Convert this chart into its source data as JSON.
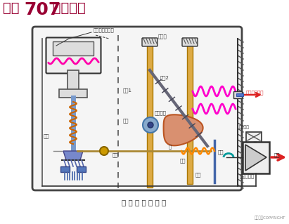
{
  "title_part1": "化工",
  "title_part2": "707",
  "title_part3": " 剪辑制作",
  "title_color": "#990033",
  "title_fontsize": 16,
  "subtitle": "气 动 阀 门 定 位 器",
  "subtitle_color": "#333333",
  "copyright": "东方仿真COPYRIGHT",
  "bg_color": "#ffffff",
  "labels": {
    "qidong_shenmo": "气动薄膜调节阀",
    "bofenguan": "波纹管",
    "yalixinhao": "压力信号输入",
    "zhugan1": "柱杆1",
    "zhugan2": "柱杆2",
    "gunlun": "滚轮",
    "pianxin_tulun": "偏心凸轮",
    "pingban": "平板",
    "bogan": "拨杆",
    "zhu": "轴",
    "tanhuang": "弹簧",
    "dangban": "挡板",
    "heng_jie_liukong": "恒节流孔",
    "pen_zui": "喷嘴",
    "qi_yuan": "气源",
    "qidong_fanfaqi": "气动放大器"
  }
}
